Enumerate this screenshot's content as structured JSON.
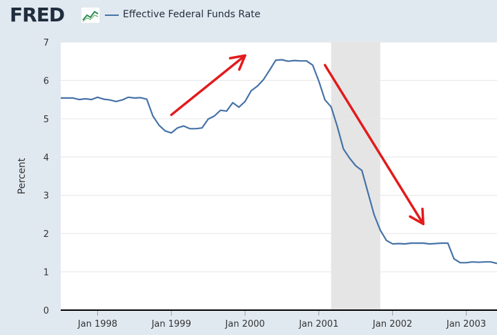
{
  "header": {
    "logo_text": "FRED",
    "legend_label": "Effective Federal Funds Rate"
  },
  "colors": {
    "series": "#4572a7",
    "annotation": "#e31a1c",
    "recession": "#e5e5e5"
  },
  "chart_data": {
    "type": "line",
    "title": "",
    "xlabel": "",
    "ylabel": "Percent",
    "ylim": [
      0,
      7
    ],
    "yticks": [
      "0",
      "1",
      "2",
      "3",
      "4",
      "5",
      "6",
      "7"
    ],
    "xlim": [
      "1997-07",
      "2003-06"
    ],
    "xticks": [
      "Jan 1998",
      "Jan 1999",
      "Jan 2000",
      "Jan 2001",
      "Jan 2002",
      "Jan 2003"
    ],
    "grid": "horizontal",
    "recession": {
      "start": "2001-03",
      "end": "2001-11"
    },
    "series": [
      {
        "name": "Effective Federal Funds Rate",
        "x": [
          "1997-07",
          "1997-08",
          "1997-09",
          "1997-10",
          "1997-11",
          "1997-12",
          "1998-01",
          "1998-02",
          "1998-03",
          "1998-04",
          "1998-05",
          "1998-06",
          "1998-07",
          "1998-08",
          "1998-09",
          "1998-10",
          "1998-11",
          "1998-12",
          "1999-01",
          "1999-02",
          "1999-03",
          "1999-04",
          "1999-05",
          "1999-06",
          "1999-07",
          "1999-08",
          "1999-09",
          "1999-10",
          "1999-11",
          "1999-12",
          "2000-01",
          "2000-02",
          "2000-03",
          "2000-04",
          "2000-05",
          "2000-06",
          "2000-07",
          "2000-08",
          "2000-09",
          "2000-10",
          "2000-11",
          "2000-12",
          "2001-01",
          "2001-02",
          "2001-03",
          "2001-04",
          "2001-05",
          "2001-06",
          "2001-07",
          "2001-08",
          "2001-09",
          "2001-10",
          "2001-11",
          "2001-12",
          "2002-01",
          "2002-02",
          "2002-03",
          "2002-04",
          "2002-05",
          "2002-06",
          "2002-07",
          "2002-08",
          "2002-09",
          "2002-10",
          "2002-11",
          "2002-12",
          "2003-01",
          "2003-02",
          "2003-03",
          "2003-04",
          "2003-05",
          "2003-06"
        ],
        "values": [
          5.54,
          5.54,
          5.54,
          5.5,
          5.52,
          5.5,
          5.56,
          5.51,
          5.49,
          5.45,
          5.49,
          5.56,
          5.54,
          5.55,
          5.51,
          5.07,
          4.83,
          4.68,
          4.63,
          4.76,
          4.81,
          4.74,
          4.74,
          4.76,
          4.99,
          5.07,
          5.22,
          5.2,
          5.42,
          5.3,
          5.45,
          5.73,
          5.85,
          6.02,
          6.27,
          6.53,
          6.54,
          6.5,
          6.52,
          6.51,
          6.51,
          6.4,
          5.98,
          5.49,
          5.31,
          4.8,
          4.21,
          3.97,
          3.77,
          3.65,
          3.07,
          2.49,
          2.09,
          1.82,
          1.73,
          1.74,
          1.73,
          1.75,
          1.75,
          1.75,
          1.73,
          1.74,
          1.75,
          1.75,
          1.34,
          1.24,
          1.24,
          1.26,
          1.25,
          1.26,
          1.26,
          1.22
        ]
      }
    ],
    "annotations": [
      {
        "type": "arrow",
        "from": [
          "1999-01",
          5.1
        ],
        "to": [
          "2000-01",
          6.65
        ]
      },
      {
        "type": "arrow",
        "from": [
          "2001-02",
          6.4
        ],
        "to": [
          "2002-06",
          2.25
        ]
      }
    ]
  }
}
